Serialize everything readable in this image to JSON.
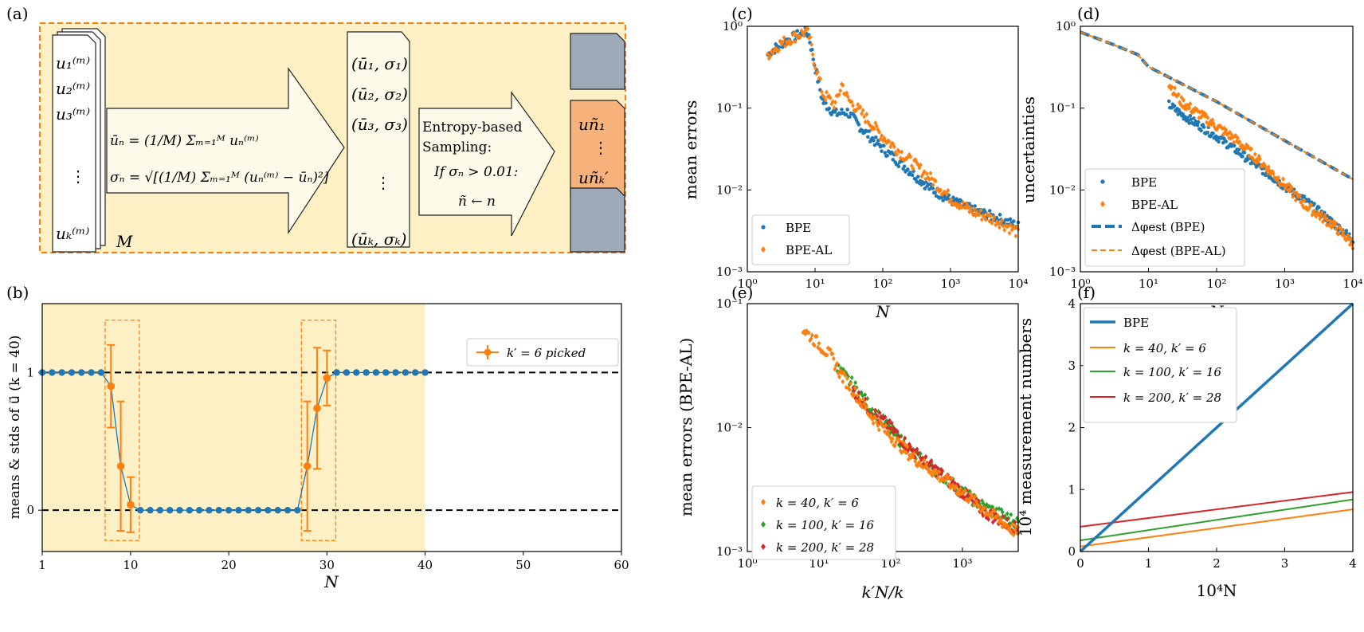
{
  "colors": {
    "blue": "#1f77b4",
    "orange": "#ff7f0e",
    "green": "#2ca02c",
    "red": "#d62728",
    "panel_fill": "#fdf0c4",
    "box_fill": "#fefae9",
    "slate": "#9eaab8",
    "salmon": "#f6b27a"
  },
  "panel_a": {
    "label": "(a)",
    "stack_lines": [
      "u₁⁽ᵐ⁾",
      "u₂⁽ᵐ⁾",
      "u₃⁽ᵐ⁾",
      "⋮",
      "uₖ⁽ᵐ⁾"
    ],
    "stack_m": "M",
    "mean_formula": "ūₙ = (1/M) Σₘ₌₁ᴹ uₙ⁽ᵐ⁾",
    "std_formula": "σₙ = √[(1/M) Σₘ₌₁ᴹ (uₙ⁽ᵐ⁾ − ūₙ)²]",
    "pairs": [
      "(ū₁, σ₁)",
      "(ū₂, σ₂)",
      "(ū₃, σ₃)",
      "⋮",
      "(ūₖ, σₖ)"
    ],
    "sampling_lines": [
      "Entropy-based",
      "Sampling:",
      "If  σₙ > 0.01:",
      "ñ ← n"
    ],
    "picked_lines": [
      "uñ₁",
      "⋮",
      "uñₖ′"
    ]
  },
  "chart_data": [
    {
      "panel": "(b)",
      "type": "scatter",
      "xlabel": "N",
      "ylabel": "means & stds of u⃗ (k = 40)",
      "xlim": [
        1,
        60
      ],
      "ylim": [
        -0.3,
        1.5
      ],
      "xticks": [
        1,
        10,
        20,
        30,
        40,
        50,
        60
      ],
      "yticks": [
        0,
        1
      ],
      "reference_lines": [
        0,
        1
      ],
      "shaded_x": [
        1,
        40
      ],
      "series": [
        {
          "name": "means",
          "x": [
            1,
            2,
            3,
            4,
            5,
            6,
            7,
            8,
            9,
            10,
            11,
            12,
            13,
            14,
            15,
            16,
            17,
            18,
            19,
            20,
            21,
            22,
            23,
            24,
            25,
            26,
            27,
            28,
            29,
            30,
            31,
            32,
            33,
            34,
            35,
            36,
            37,
            38,
            39,
            40
          ],
          "values": [
            1,
            1,
            1,
            1,
            1,
            1,
            1,
            0.9,
            0.32,
            0.04,
            0,
            0,
            0,
            0,
            0,
            0,
            0,
            0,
            0,
            0,
            0,
            0,
            0,
            0,
            0,
            0,
            0,
            0.32,
            0.74,
            0.96,
            1,
            1,
            1,
            1,
            1,
            1,
            1,
            1,
            1,
            1
          ]
        },
        {
          "name": "k′ = 6 picked",
          "x": [
            8,
            9,
            10,
            28,
            29,
            30
          ],
          "values": [
            0.9,
            0.32,
            0.04,
            0.32,
            0.74,
            0.96
          ],
          "errors": [
            0.3,
            0.47,
            0.2,
            0.47,
            0.44,
            0.2
          ]
        }
      ],
      "legend": "top-right"
    },
    {
      "panel": "(c)",
      "type": "scatter",
      "xscale": "log",
      "yscale": "log",
      "xlabel": "N",
      "ylabel": "mean errors",
      "xlim": [
        1,
        10000
      ],
      "ylim": [
        0.001,
        1
      ],
      "xticks": [
        "10⁰",
        "10¹",
        "10²",
        "10³",
        "10⁴"
      ],
      "yticks": [
        "10⁻³",
        "10⁻²",
        "10⁻¹",
        "10⁰"
      ],
      "series": [
        {
          "name": "BPE",
          "x": [
            2,
            3,
            5,
            7,
            8,
            10,
            13,
            20,
            30,
            50,
            100,
            200,
            500,
            1000,
            2000,
            5000,
            10000
          ],
          "values": [
            0.45,
            0.6,
            0.75,
            0.85,
            0.8,
            0.32,
            0.12,
            0.085,
            0.09,
            0.055,
            0.032,
            0.02,
            0.0105,
            0.0075,
            0.0058,
            0.0045,
            0.0036
          ]
        },
        {
          "name": "BPE-AL",
          "x": [
            2,
            3,
            5,
            7,
            8,
            10,
            13,
            20,
            25,
            30,
            50,
            100,
            200,
            500,
            1000,
            2000,
            5000,
            10000
          ],
          "values": [
            0.45,
            0.6,
            0.75,
            0.85,
            0.8,
            0.35,
            0.15,
            0.11,
            0.2,
            0.13,
            0.085,
            0.045,
            0.027,
            0.014,
            0.008,
            0.0055,
            0.0042,
            0.003
          ]
        }
      ],
      "legend": "bottom-left"
    },
    {
      "panel": "(d)",
      "type": "scatter",
      "xscale": "log",
      "yscale": "log",
      "xlabel": "N",
      "ylabel": "uncertainties",
      "xlim": [
        1,
        10000
      ],
      "ylim": [
        0.001,
        1
      ],
      "xticks": [
        "10⁰",
        "10¹",
        "10²",
        "10³",
        "10⁴"
      ],
      "yticks": [
        "10⁻³",
        "10⁻²",
        "10⁻¹",
        "10⁰"
      ],
      "series": [
        {
          "name": "BPE",
          "x": [
            20,
            30,
            50,
            100,
            200,
            500,
            1000,
            2000,
            5000,
            10000
          ],
          "values": [
            0.11,
            0.085,
            0.065,
            0.045,
            0.03,
            0.017,
            0.011,
            0.0075,
            0.004,
            0.0025
          ]
        },
        {
          "name": "BPE-AL",
          "x": [
            20,
            30,
            50,
            100,
            200,
            500,
            1000,
            2000,
            5000,
            10000
          ],
          "values": [
            0.2,
            0.12,
            0.09,
            0.06,
            0.04,
            0.02,
            0.0115,
            0.0065,
            0.0038,
            0.0022
          ]
        },
        {
          "name": "Δφest (BPE)",
          "x": [
            1,
            3,
            7,
            10,
            100,
            1000,
            10000
          ],
          "values": [
            0.85,
            0.6,
            0.45,
            0.32,
            0.12,
            0.04,
            0.0135
          ]
        },
        {
          "name": "Δφest (BPE-AL)",
          "x": [
            1,
            3,
            7,
            10,
            100,
            1000,
            10000
          ],
          "values": [
            0.85,
            0.6,
            0.45,
            0.32,
            0.12,
            0.04,
            0.0135
          ]
        }
      ],
      "legend": "bottom-left"
    },
    {
      "panel": "(e)",
      "type": "scatter",
      "xscale": "log",
      "yscale": "log",
      "xlabel": "k′N/k",
      "ylabel": "mean errors (BPE-AL)",
      "xlim": [
        1,
        6000
      ],
      "ylim": [
        0.001,
        0.1
      ],
      "xticks": [
        "10⁰",
        "10¹",
        "10²",
        "10³"
      ],
      "yticks": [
        "10⁻³",
        "10⁻²",
        "10⁻¹"
      ],
      "series": [
        {
          "name": "k = 40,   k′ = 6",
          "x": [
            6,
            10,
            15,
            20,
            30,
            50,
            100,
            200,
            500,
            1000,
            2000,
            6000
          ],
          "values": [
            0.062,
            0.047,
            0.037,
            0.027,
            0.02,
            0.013,
            0.0085,
            0.0058,
            0.004,
            0.003,
            0.0022,
            0.0014
          ]
        },
        {
          "name": "k = 100, k′ = 16",
          "x": [
            18,
            30,
            50,
            100,
            200,
            500,
            1000,
            2000,
            6000
          ],
          "values": [
            0.03,
            0.022,
            0.015,
            0.0095,
            0.0062,
            0.0042,
            0.003,
            0.0023,
            0.0017
          ]
        },
        {
          "name": "k = 200, k′ = 28",
          "x": [
            30,
            50,
            100,
            200,
            500,
            1000,
            2000,
            6000
          ],
          "values": [
            0.02,
            0.014,
            0.01,
            0.0065,
            0.0042,
            0.003,
            0.0021,
            0.0015
          ]
        }
      ],
      "legend": "bottom-left"
    },
    {
      "panel": "(f)",
      "type": "line",
      "xlabel": "10⁴N",
      "ylabel": "10⁴ measurement numbers",
      "xlim": [
        0,
        4
      ],
      "ylim": [
        0,
        4
      ],
      "xticks": [
        0,
        1,
        2,
        3,
        4
      ],
      "yticks": [
        0,
        1,
        2,
        3,
        4
      ],
      "series": [
        {
          "name": "BPE",
          "x": [
            0,
            4
          ],
          "values": [
            0,
            4
          ]
        },
        {
          "name": "k = 40, k′ = 6",
          "x": [
            0,
            4
          ],
          "values": [
            0.08,
            0.68
          ]
        },
        {
          "name": "k = 100, k′ = 16",
          "x": [
            0,
            4
          ],
          "values": [
            0.18,
            0.84
          ]
        },
        {
          "name": "k = 200, k′ = 28",
          "x": [
            0,
            4
          ],
          "values": [
            0.4,
            0.96
          ]
        }
      ],
      "legend": "top-left"
    }
  ]
}
